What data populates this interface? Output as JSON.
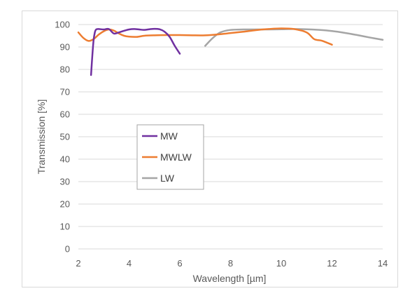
{
  "chart_data": {
    "type": "line",
    "xlabel": "Wavelength [µm]",
    "ylabel": "Transmission [%]",
    "xlim": [
      2,
      14
    ],
    "ylim": [
      0,
      100
    ],
    "xticks": [
      2,
      4,
      6,
      8,
      10,
      12,
      14
    ],
    "yticks": [
      0,
      10,
      20,
      30,
      40,
      50,
      60,
      70,
      80,
      90,
      100
    ],
    "grid": "horizontal",
    "legend": "inside-left",
    "series": [
      {
        "name": "MW",
        "color": "#7030A0",
        "x": [
          2.5,
          2.55,
          2.6,
          2.65,
          2.7,
          2.8,
          3.0,
          3.2,
          3.4,
          3.6,
          3.8,
          4.0,
          4.2,
          4.4,
          4.6,
          4.8,
          5.0,
          5.2,
          5.4,
          5.6,
          5.8,
          6.0
        ],
        "y": [
          77.5,
          86,
          93,
          96.5,
          97.8,
          98.0,
          97.8,
          98.0,
          96.0,
          96.5,
          97.2,
          97.8,
          98.0,
          97.8,
          97.6,
          97.9,
          98.1,
          97.9,
          96.8,
          94.5,
          90.5,
          87.0
        ]
      },
      {
        "name": "MWLW",
        "color": "#ED7D31",
        "x": [
          2.0,
          2.2,
          2.4,
          2.6,
          2.8,
          3.0,
          3.2,
          3.4,
          3.6,
          3.8,
          4.0,
          4.3,
          4.6,
          5.0,
          5.5,
          6.0,
          6.5,
          7.0,
          7.5,
          8.0,
          8.5,
          9.0,
          9.5,
          10.0,
          10.5,
          11.0,
          11.3,
          11.6,
          12.0
        ],
        "y": [
          96.5,
          94.0,
          92.7,
          93.5,
          95.5,
          97.0,
          97.8,
          97.3,
          96.0,
          95.0,
          94.6,
          94.5,
          95.0,
          95.2,
          95.3,
          95.3,
          95.2,
          95.2,
          95.6,
          96.2,
          96.8,
          97.5,
          98.0,
          98.3,
          98.0,
          96.5,
          93.5,
          92.8,
          91.0
        ]
      },
      {
        "name": "LW",
        "color": "#A5A5A5",
        "x": [
          7.0,
          7.3,
          7.6,
          8.0,
          8.5,
          9.0,
          9.5,
          10.0,
          10.5,
          11.0,
          11.5,
          12.0,
          12.5,
          13.0,
          13.5,
          14.0
        ],
        "y": [
          90.5,
          94.0,
          96.5,
          97.6,
          97.8,
          97.8,
          97.8,
          97.9,
          98.0,
          97.9,
          97.6,
          97.1,
          96.3,
          95.3,
          94.2,
          93.2
        ]
      }
    ]
  }
}
